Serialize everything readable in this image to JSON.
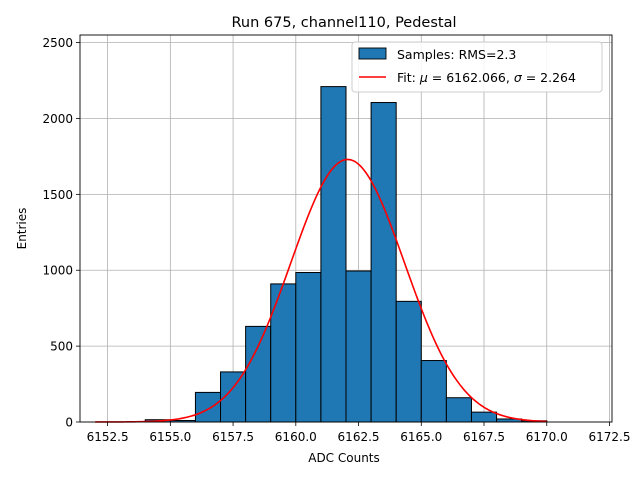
{
  "chart_data": {
    "type": "bar",
    "title": "Run 675, channel110, Pedestal",
    "xlabel": "ADC Counts",
    "ylabel": "Entries",
    "xlim": [
      6151.4,
      6172.6
    ],
    "ylim": [
      0,
      2550
    ],
    "xticks": [
      6152.5,
      6155.0,
      6157.5,
      6160.0,
      6162.5,
      6165.0,
      6167.5,
      6170.0,
      6172.5
    ],
    "xtick_labels": [
      "6152.5",
      "6155.0",
      "6157.5",
      "6160.0",
      "6162.5",
      "6165.0",
      "6167.5",
      "6170.0",
      "6172.5"
    ],
    "yticks": [
      0,
      500,
      1000,
      1500,
      2000,
      2500
    ],
    "ytick_labels": [
      "0",
      "500",
      "1000",
      "1500",
      "2000",
      "2500"
    ],
    "grid": true,
    "legend_position": "top-right",
    "series": [
      {
        "name": "Samples: RMS=2.3",
        "kind": "histogram",
        "color": "#1f77b4",
        "edge_color": "#000000",
        "bin_edges": [
          6154.0,
          6155.0,
          6156.0,
          6157.0,
          6158.0,
          6159.0,
          6160.0,
          6161.0,
          6162.0,
          6163.0,
          6164.0,
          6165.0,
          6166.0,
          6167.0,
          6168.0,
          6169.0,
          6170.0
        ],
        "values": [
          15,
          10,
          195,
          330,
          630,
          910,
          985,
          2210,
          995,
          2105,
          795,
          405,
          160,
          65,
          20,
          8
        ]
      },
      {
        "name": "Fit: μ = 6162.066, σ = 2.264",
        "kind": "gaussian-fit",
        "color": "#ff0000",
        "mu": 6162.066,
        "sigma": 2.264,
        "amplitude": 1730,
        "x_range": [
          6152.0,
          6170.0
        ]
      }
    ]
  },
  "legend": {
    "entries": [
      {
        "label": "Samples: RMS=2.3",
        "kind": "patch",
        "color": "#1f77b4"
      },
      {
        "label_prefix": "Fit: ",
        "mu_symbol": "μ",
        "mu_text": " = 6162.066, ",
        "sigma_symbol": "σ",
        "sigma_text": " = 2.264",
        "kind": "line",
        "color": "#ff0000"
      }
    ]
  }
}
